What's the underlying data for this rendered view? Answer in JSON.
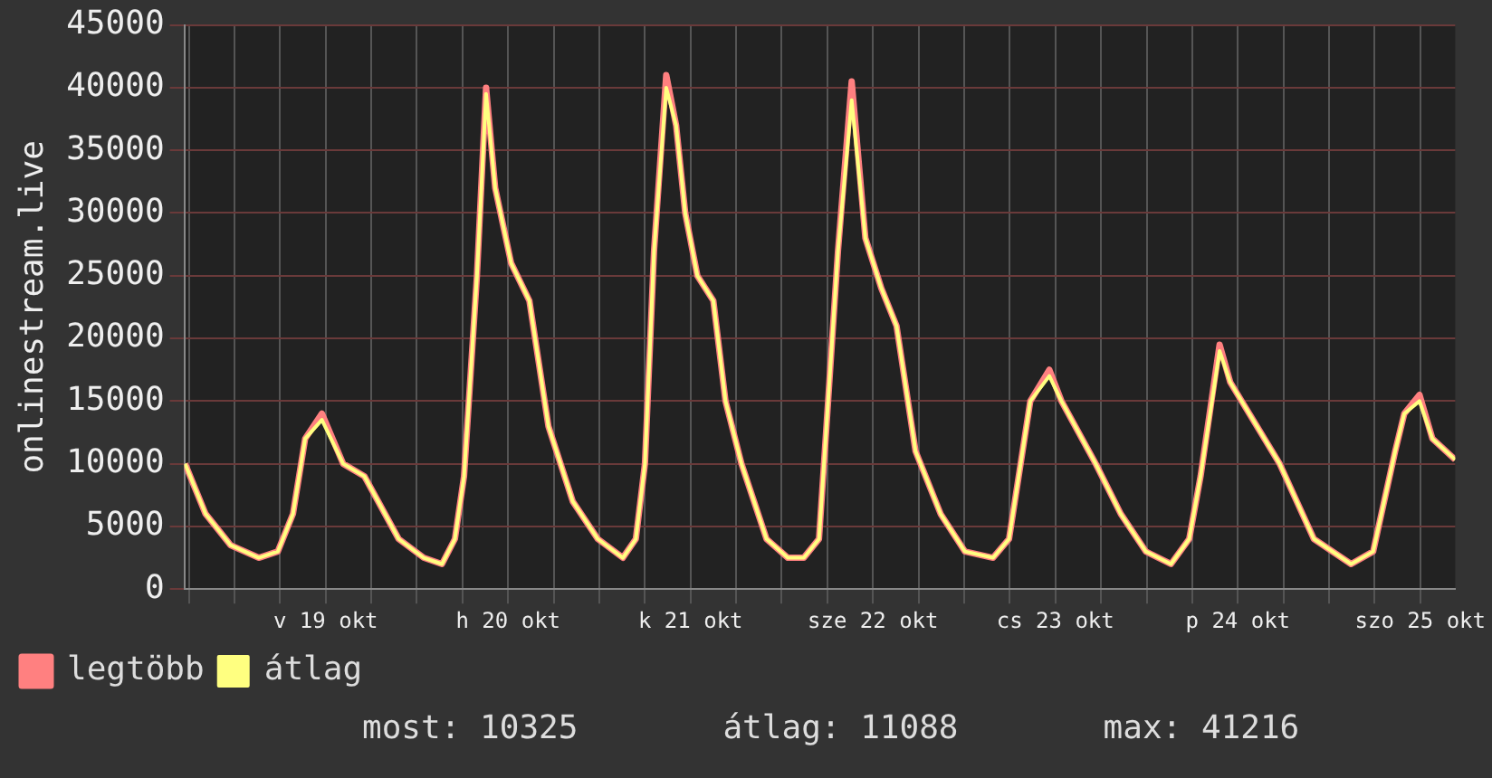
{
  "chart_data": {
    "type": "line",
    "ylabel": "onlinestream.live",
    "x": [
      "--10-18T17:30",
      "--10-18T20:12",
      "--10-18T23:30",
      "--10-19T03:12",
      "--10-19T05:42",
      "--10-19T07:42",
      "--10-19T09:18",
      "--10-19T11:30",
      "--10-19T14:18",
      "--10-19T17:06",
      "--10-19T21:36",
      "--10-20T00:54",
      "--10-20T03:18",
      "--10-20T05:00",
      "--10-20T06:12",
      "--10-20T07:54",
      "--10-20T09:06",
      "--10-20T10:18",
      "--10-20T12:24",
      "--10-20T14:48",
      "--10-20T17:18",
      "--10-20T20:30",
      "--10-20T23:48",
      "--10-21T03:06",
      "--10-21T04:48",
      "--10-21T06:00",
      "--10-21T07:12",
      "--10-21T08:48",
      "--10-21T10:06",
      "--10-21T11:18",
      "--10-21T12:54",
      "--10-21T15:00",
      "--10-21T16:36",
      "--10-21T18:42",
      "--10-21T22:00",
      "--10-22T00:48",
      "--10-22T02:54",
      "--10-22T04:54",
      "--10-22T06:06",
      "--10-22T07:24",
      "--10-22T09:12",
      "--10-22T11:00",
      "--10-22T13:06",
      "--10-22T15:06",
      "--10-22T17:36",
      "--10-22T20:54",
      "--10-23T00:06",
      "--10-23T03:48",
      "--10-23T05:54",
      "--10-23T08:42",
      "--10-23T11:12",
      "--10-23T12:48",
      "--10-23T17:18",
      "--10-23T20:36",
      "--10-23T23:54",
      "--10-24T03:12",
      "--10-24T05:36",
      "--10-24T07:06",
      "--10-24T09:36",
      "--10-24T11:00",
      "--10-24T13:00",
      "--10-24T17:30",
      "--10-24T22:00",
      "--10-25T02:54",
      "--10-25T05:48",
      "--10-25T08:42",
      "--10-25T09:54",
      "--10-25T11:54",
      "--10-25T13:36",
      "--10-25T16:36"
    ],
    "series": [
      {
        "name": "legtöbb",
        "color": "#ff8080",
        "values": [
          10000,
          6000,
          3500,
          2500,
          3000,
          6000,
          12000,
          14000,
          10000,
          9000,
          4000,
          2500,
          2000,
          4000,
          9000,
          25000,
          40000,
          32000,
          26000,
          23000,
          13000,
          7000,
          4000,
          2500,
          4000,
          10000,
          27000,
          41000,
          37000,
          30000,
          25000,
          23000,
          15000,
          10000,
          4000,
          2500,
          2500,
          4000,
          15000,
          27000,
          40500,
          28000,
          24000,
          21000,
          11000,
          6000,
          3000,
          2500,
          4000,
          15000,
          17500,
          15000,
          10000,
          6000,
          3000,
          2000,
          4000,
          9000,
          19500,
          16500,
          14500,
          10000,
          4000,
          2000,
          3000,
          11000,
          14000,
          15500,
          12000,
          10325
        ]
      },
      {
        "name": "átlag",
        "color": "#ffff80",
        "values": [
          10000,
          6000,
          3500,
          2500,
          3000,
          6000,
          12000,
          13500,
          10000,
          9000,
          4000,
          2500,
          2000,
          4000,
          9000,
          25000,
          39500,
          32000,
          26000,
          23000,
          13000,
          7000,
          4000,
          2500,
          4000,
          10000,
          27000,
          40000,
          37000,
          30000,
          25000,
          23000,
          15000,
          10000,
          4000,
          2500,
          2500,
          4000,
          15000,
          27000,
          39000,
          28000,
          24000,
          21000,
          11000,
          6000,
          3000,
          2500,
          4000,
          15000,
          17000,
          15000,
          10000,
          6000,
          3000,
          2000,
          4000,
          9000,
          19000,
          16500,
          14500,
          10000,
          4000,
          2000,
          3000,
          11000,
          14000,
          15000,
          12000,
          10325
        ]
      }
    ],
    "xlim": [
      "--10-18T17:24",
      "--10-25T16:36"
    ],
    "xticks": [
      {
        "value": "--10-18T18:00",
        "label": null
      },
      {
        "value": "--10-19T00:00",
        "label": null
      },
      {
        "value": "--10-19T06:00",
        "label": null
      },
      {
        "value": "--10-19T12:00",
        "label": "v 19 okt"
      },
      {
        "value": "--10-19T18:00",
        "label": null
      },
      {
        "value": "--10-20T00:00",
        "label": null
      },
      {
        "value": "--10-20T06:00",
        "label": null
      },
      {
        "value": "--10-20T12:00",
        "label": "h 20 okt"
      },
      {
        "value": "--10-20T18:00",
        "label": null
      },
      {
        "value": "--10-21T00:00",
        "label": null
      },
      {
        "value": "--10-21T06:00",
        "label": null
      },
      {
        "value": "--10-21T12:00",
        "label": "k 21 okt"
      },
      {
        "value": "--10-21T18:00",
        "label": null
      },
      {
        "value": "--10-22T00:00",
        "label": null
      },
      {
        "value": "--10-22T06:00",
        "label": null
      },
      {
        "value": "--10-22T12:00",
        "label": "sze 22 okt"
      },
      {
        "value": "--10-22T18:00",
        "label": null
      },
      {
        "value": "--10-23T00:00",
        "label": null
      },
      {
        "value": "--10-23T06:00",
        "label": null
      },
      {
        "value": "--10-23T12:00",
        "label": "cs 23 okt"
      },
      {
        "value": "--10-23T18:00",
        "label": null
      },
      {
        "value": "--10-24T00:00",
        "label": null
      },
      {
        "value": "--10-24T06:00",
        "label": null
      },
      {
        "value": "--10-24T12:00",
        "label": "p 24 okt"
      },
      {
        "value": "--10-24T18:00",
        "label": null
      },
      {
        "value": "--10-25T00:00",
        "label": null
      },
      {
        "value": "--10-25T06:00",
        "label": null
      },
      {
        "value": "--10-25T12:00",
        "label": "szo 25 okt"
      }
    ],
    "ylim": [
      0,
      45000
    ],
    "yticks": [
      0,
      5000,
      10000,
      15000,
      20000,
      25000,
      30000,
      35000,
      40000,
      45000
    ],
    "grid": true,
    "legend": "bottom left",
    "marker": "none",
    "line_style": "solid",
    "annotations": [
      "most: 10325",
      "átlag: 11088",
      "max: 41216"
    ]
  }
}
